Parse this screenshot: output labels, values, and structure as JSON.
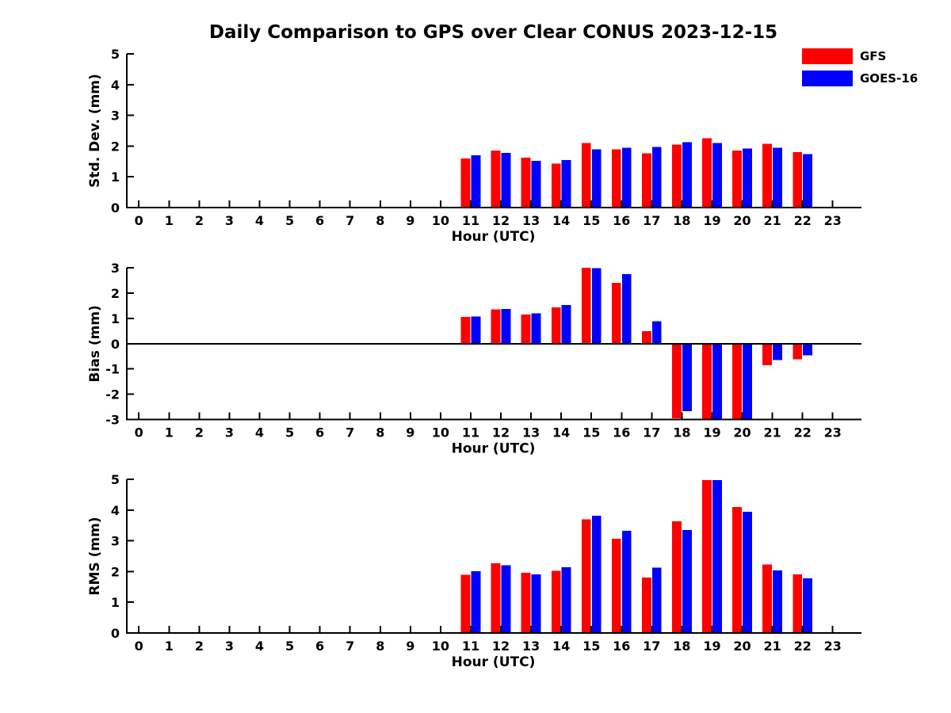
{
  "title": "Daily Comparison to GPS over Clear CONUS 2023-12-15",
  "legend": [
    {
      "label": "GFS",
      "color": "#ff0000"
    },
    {
      "label": "GOES-16",
      "color": "#0000ff"
    }
  ],
  "colors": {
    "gfs": "#ff0000",
    "goes16": "#0000ff",
    "axis": "#000000",
    "background": "#ffffff"
  },
  "chart_data": [
    {
      "type": "bar",
      "name": "std-dev",
      "ylabel": "Std. Dev. (mm)",
      "xlabel": "Hour (UTC)",
      "ylim": [
        0,
        5
      ],
      "yticks": [
        0,
        1,
        2,
        3,
        4,
        5
      ],
      "xticks": [
        0,
        1,
        2,
        3,
        4,
        5,
        6,
        7,
        8,
        9,
        10,
        11,
        12,
        13,
        14,
        15,
        16,
        17,
        18,
        19,
        20,
        21,
        22,
        23
      ],
      "grid": false,
      "categories": [
        11,
        12,
        13,
        14,
        15,
        16,
        17,
        18,
        19,
        20,
        21,
        22
      ],
      "series": [
        {
          "name": "GFS",
          "color": "#ff0000",
          "values": [
            1.6,
            1.85,
            1.62,
            1.43,
            2.1,
            1.9,
            1.76,
            2.05,
            2.25,
            1.85,
            2.08,
            1.81
          ]
        },
        {
          "name": "GOES-16",
          "color": "#0000ff",
          "values": [
            1.7,
            1.78,
            1.52,
            1.55,
            1.9,
            1.95,
            1.97,
            2.12,
            2.1,
            1.92,
            1.95,
            1.74
          ]
        }
      ]
    },
    {
      "type": "bar",
      "name": "bias",
      "ylabel": "Bias (mm)",
      "xlabel": "Hour (UTC)",
      "ylim": [
        -3,
        3
      ],
      "yticks": [
        -3,
        -2,
        -1,
        0,
        1,
        2,
        3
      ],
      "xticks": [
        0,
        1,
        2,
        3,
        4,
        5,
        6,
        7,
        8,
        9,
        10,
        11,
        12,
        13,
        14,
        15,
        16,
        17,
        18,
        19,
        20,
        21,
        22,
        23
      ],
      "zero_line": true,
      "grid": false,
      "categories": [
        11,
        12,
        13,
        14,
        15,
        16,
        17,
        18,
        19,
        20,
        21,
        22
      ],
      "series": [
        {
          "name": "GFS",
          "color": "#ff0000",
          "values": [
            1.05,
            1.36,
            1.15,
            1.43,
            3.0,
            2.4,
            0.5,
            -2.95,
            -3.0,
            -3.0,
            -0.85,
            -0.62
          ]
        },
        {
          "name": "GOES-16",
          "color": "#0000ff",
          "values": [
            1.08,
            1.37,
            1.2,
            1.53,
            2.98,
            2.75,
            0.88,
            -2.67,
            -3.0,
            -3.0,
            -0.65,
            -0.46
          ]
        }
      ]
    },
    {
      "type": "bar",
      "name": "rms",
      "ylabel": "RMS (mm)",
      "xlabel": "Hour (UTC)",
      "ylim": [
        0,
        5
      ],
      "yticks": [
        0,
        1,
        2,
        3,
        4,
        5
      ],
      "xticks": [
        0,
        1,
        2,
        3,
        4,
        5,
        6,
        7,
        8,
        9,
        10,
        11,
        12,
        13,
        14,
        15,
        16,
        17,
        18,
        19,
        20,
        21,
        22,
        23
      ],
      "grid": false,
      "categories": [
        11,
        12,
        13,
        14,
        15,
        16,
        17,
        18,
        19,
        20,
        21,
        22
      ],
      "series": [
        {
          "name": "GFS",
          "color": "#ff0000",
          "values": [
            1.9,
            2.27,
            1.96,
            2.02,
            3.7,
            3.07,
            1.81,
            3.63,
            4.98,
            4.1,
            2.23,
            1.91
          ]
        },
        {
          "name": "GOES-16",
          "color": "#0000ff",
          "values": [
            2.01,
            2.21,
            1.91,
            2.14,
            3.82,
            3.33,
            2.12,
            3.35,
            4.98,
            3.94,
            2.04,
            1.78
          ]
        }
      ]
    }
  ]
}
